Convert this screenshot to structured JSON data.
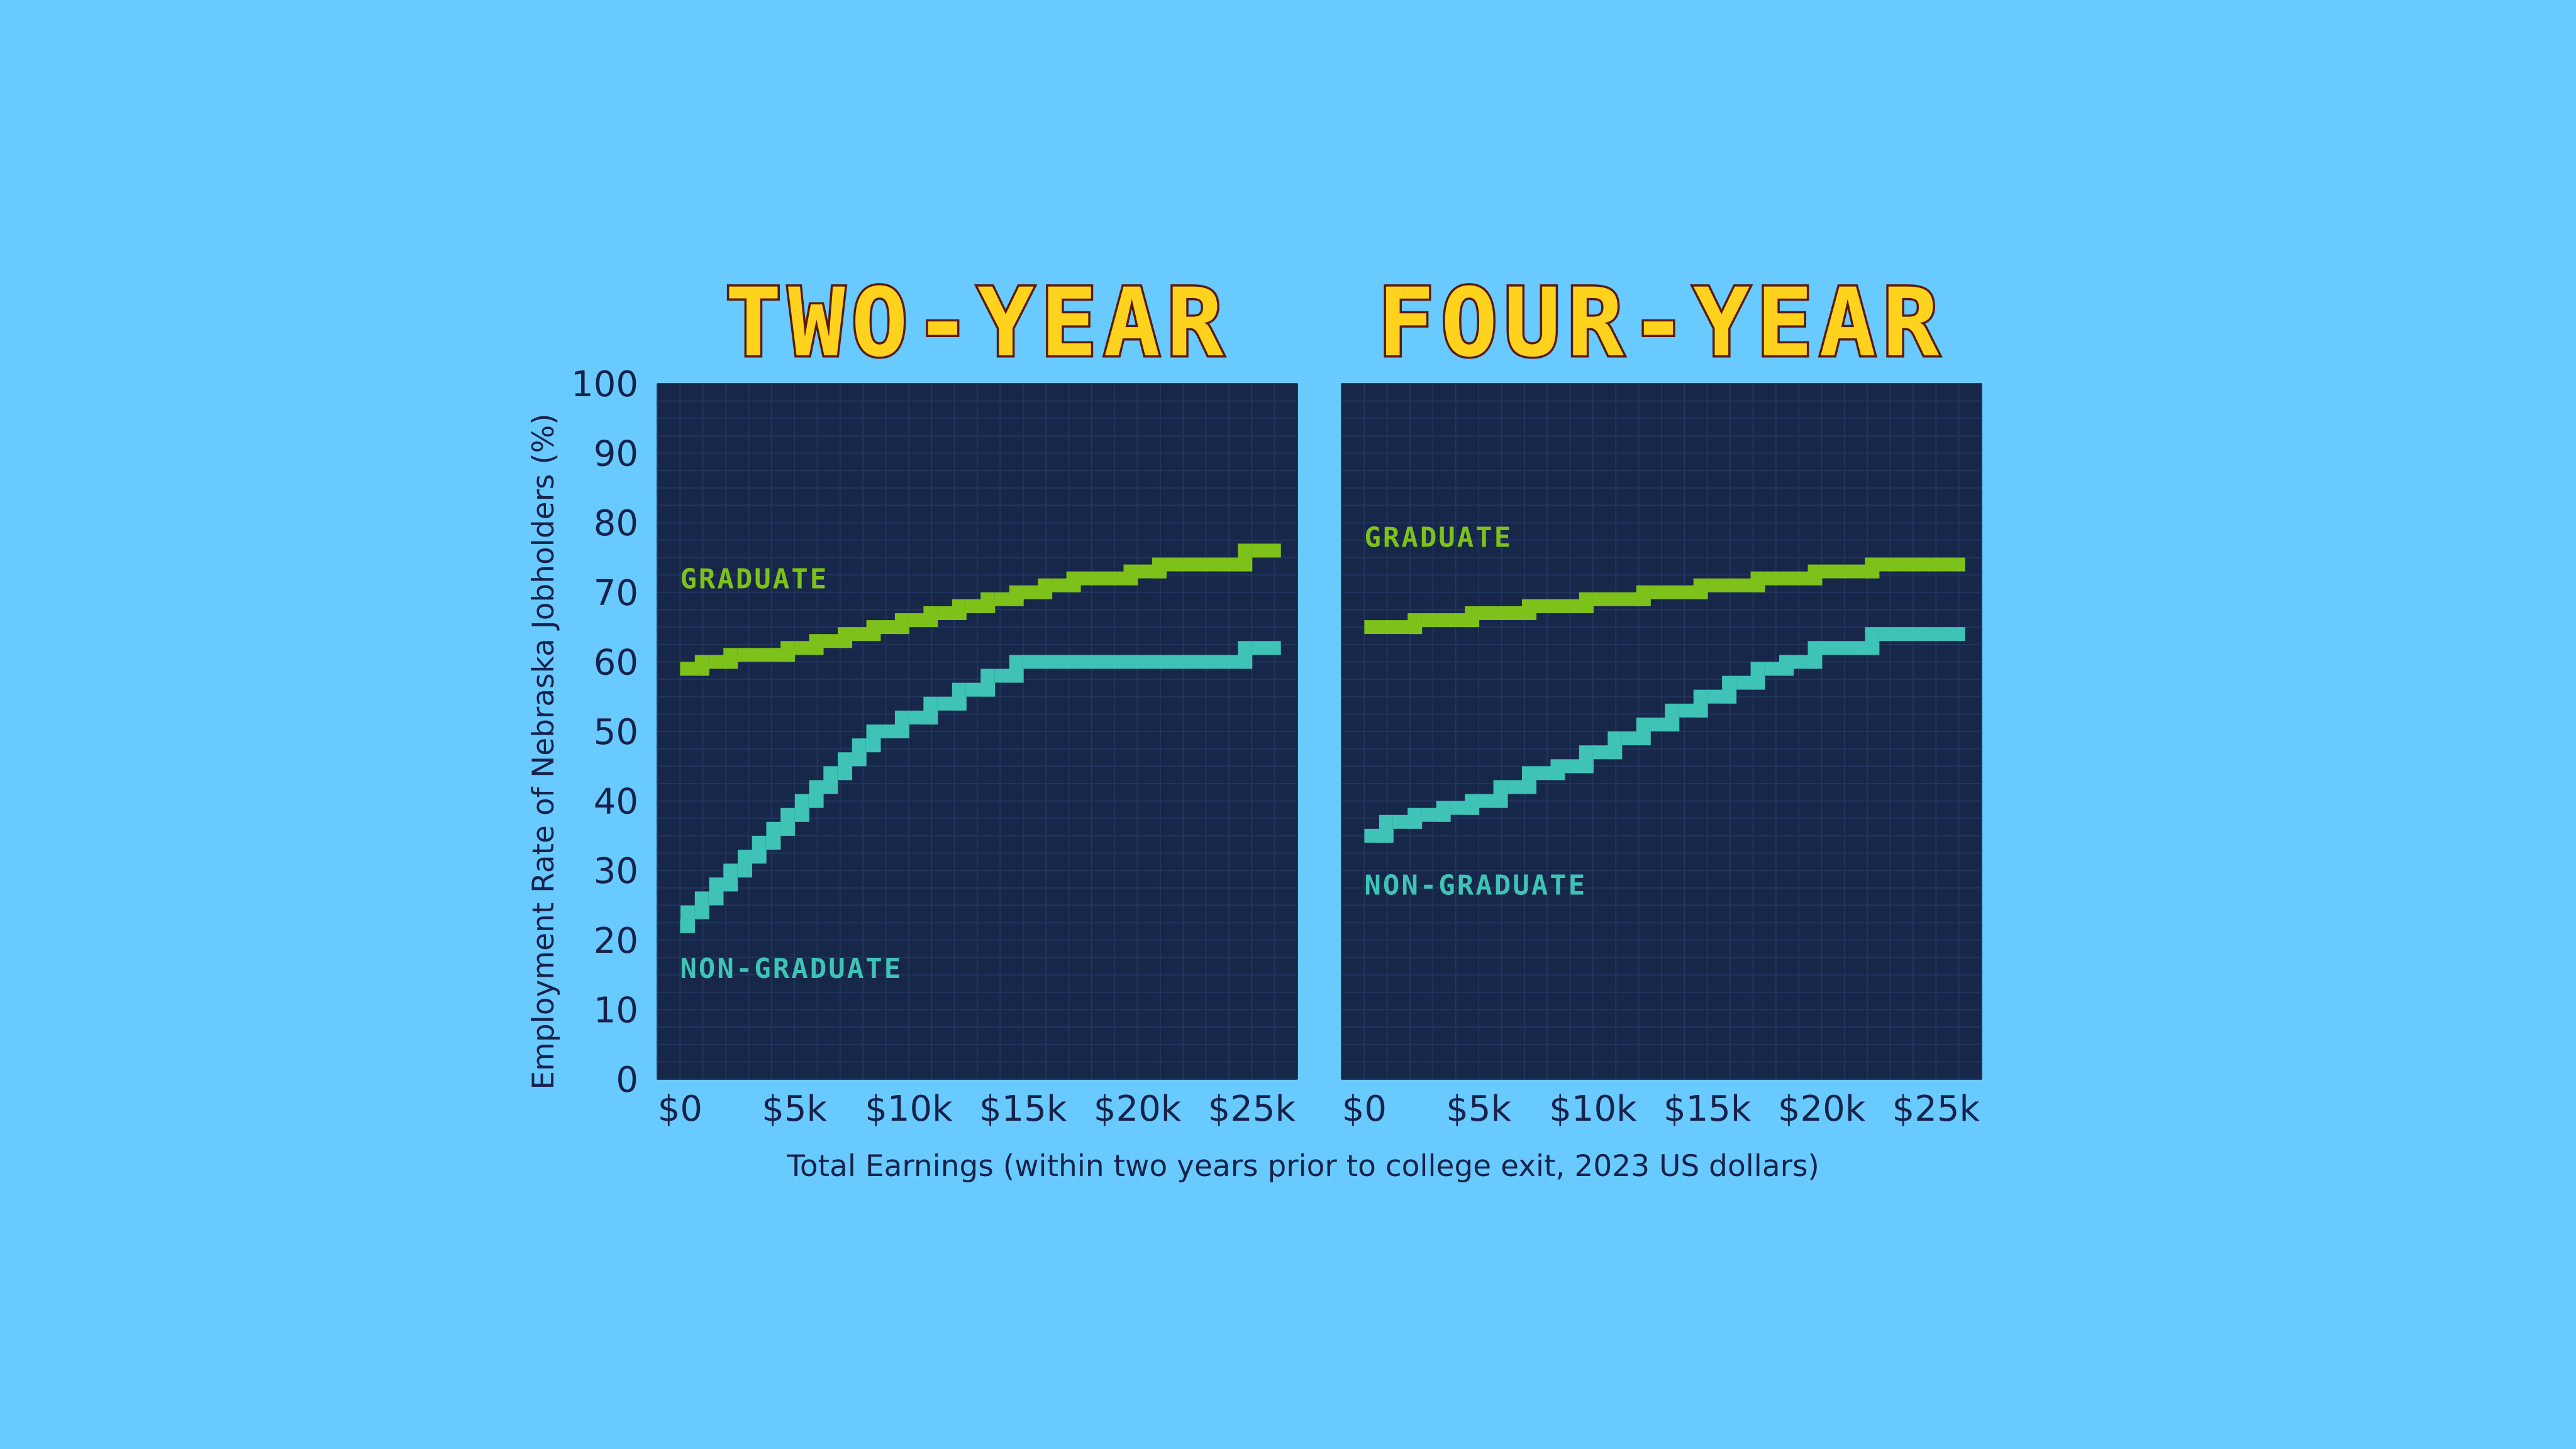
{
  "chart_data": {
    "type": "line",
    "ylabel": "Employment Rate of Nebraska Jobholders (%)",
    "xlabel": "Total Earnings (within two years prior to college exit, 2023 US dollars)",
    "yticks": [
      "0",
      "10",
      "20",
      "30",
      "40",
      "50",
      "60",
      "70",
      "80",
      "90",
      "100"
    ],
    "ylim": [
      0,
      100
    ],
    "xlim": [
      -1000,
      27000
    ],
    "xticks": [
      "$0",
      "$5k",
      "$10k",
      "$15k",
      "$20k",
      "$25k"
    ],
    "xtick_values": [
      0,
      5000,
      10000,
      15000,
      20000,
      25000
    ],
    "grid": true,
    "panels": [
      {
        "title": "TWO-YEAR",
        "series": [
          {
            "name": "GRADUATE",
            "color": "#7ec11a",
            "label_value": [
              0,
              72
            ],
            "x": [
              0,
              1250,
              2500,
              3750,
              5000,
              6250,
              7500,
              8750,
              10000,
              11250,
              12500,
              13750,
              15000,
              16250,
              17500,
              18750,
              20000,
              21250,
              22500,
              23750,
              25000
            ],
            "y": [
              59,
              60,
              61,
              61,
              62,
              63,
              64,
              65,
              66,
              67,
              68,
              69,
              70,
              71,
              72,
              72,
              73,
              74,
              74,
              74,
              76
            ]
          },
          {
            "name": "NON-GRADUATE",
            "color": "#3ec3b6",
            "label_value": [
              0,
              16
            ],
            "x": [
              0,
              625,
              1250,
              1875,
              2500,
              3125,
              3750,
              4375,
              5000,
              5625,
              6250,
              6875,
              7500,
              8125,
              8750,
              10000,
              11250,
              12500,
              13750,
              15000,
              16250,
              17500,
              18750,
              20000,
              21250,
              22500,
              23750,
              25000
            ],
            "y": [
              22,
              24,
              26,
              28,
              30,
              32,
              34,
              36,
              38,
              40,
              42,
              44,
              46,
              48,
              50,
              52,
              54,
              56,
              58,
              60,
              60,
              60,
              60,
              60,
              60,
              60,
              60,
              62
            ]
          }
        ]
      },
      {
        "title": "FOUR-YEAR",
        "series": [
          {
            "name": "GRADUATE",
            "color": "#7ec11a",
            "label_value": [
              0,
              78
            ],
            "x": [
              0,
              1250,
              2500,
              3750,
              5000,
              6250,
              7500,
              8750,
              10000,
              11250,
              12500,
              13750,
              15000,
              16250,
              17500,
              18750,
              20000,
              21250,
              22500,
              23750,
              25000
            ],
            "y": [
              65,
              65,
              66,
              66,
              67,
              67,
              68,
              68,
              69,
              69,
              70,
              70,
              71,
              71,
              72,
              72,
              73,
              73,
              74,
              74,
              74
            ]
          },
          {
            "name": "NON-GRADUATE",
            "color": "#3ec3b6",
            "label_value": [
              0,
              28
            ],
            "x": [
              0,
              1250,
              2500,
              3750,
              5000,
              6250,
              7500,
              8750,
              10000,
              11250,
              12500,
              13750,
              15000,
              16250,
              17500,
              18750,
              20000,
              21250,
              22500,
              23750,
              25000
            ],
            "y": [
              35,
              37,
              38,
              39,
              40,
              42,
              44,
              45,
              47,
              49,
              51,
              53,
              55,
              57,
              59,
              60,
              62,
              62,
              64,
              64,
              64
            ]
          }
        ]
      }
    ]
  }
}
